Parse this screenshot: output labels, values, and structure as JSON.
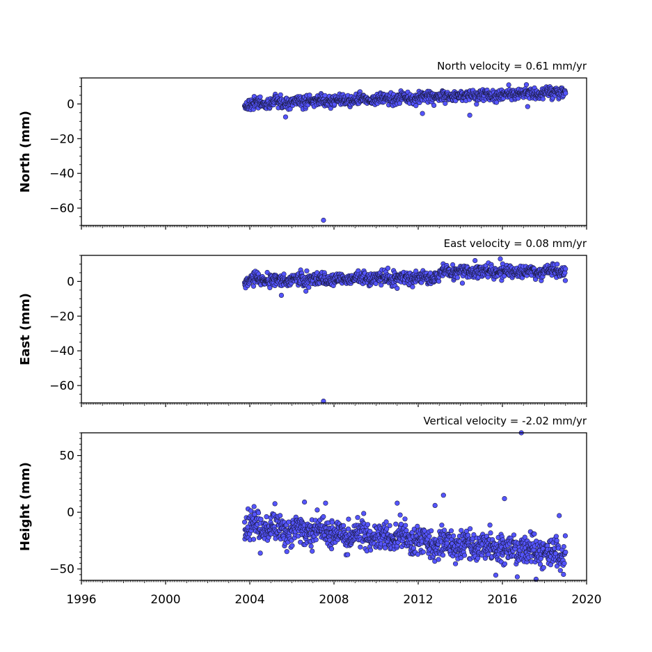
{
  "chart_data": [
    {
      "type": "scatter",
      "panel": "north",
      "ylabel": "North (mm)",
      "annotation": "North velocity = 0.61 mm/yr",
      "xlim": [
        1996,
        2020
      ],
      "ylim": [
        -70,
        15
      ],
      "yticks": [
        0,
        -20,
        -40,
        -60
      ],
      "xticks": [
        1996,
        2000,
        2004,
        2008,
        2012,
        2016,
        2020
      ],
      "show_x_tick_labels": false,
      "point_color": "#5555ff",
      "data_range": [
        2003.75,
        2019.0
      ],
      "trend": {
        "start": 0,
        "end": 7,
        "scatter": 1.6
      },
      "outliers": [
        {
          "x": 2005.7,
          "y": -7.5
        },
        {
          "x": 2007.5,
          "y": -67
        },
        {
          "x": 2012.2,
          "y": -5.5
        },
        {
          "x": 2014.45,
          "y": -6.5
        },
        {
          "x": 2016.3,
          "y": 11
        },
        {
          "x": 2017.2,
          "y": -1.5
        }
      ]
    },
    {
      "type": "scatter",
      "panel": "east",
      "ylabel": "East (mm)",
      "annotation": "East velocity = 0.08 mm/yr",
      "xlim": [
        1996,
        2020
      ],
      "ylim": [
        -70,
        15
      ],
      "yticks": [
        0,
        -20,
        -40,
        -60
      ],
      "xticks": [
        1996,
        2000,
        2004,
        2008,
        2012,
        2016,
        2020
      ],
      "show_x_tick_labels": false,
      "point_color": "#5555ff",
      "data_range": [
        2003.75,
        2019.0
      ],
      "trend": {
        "start": 0.5,
        "end": 6,
        "scatter": 1.8,
        "step_year": 2013.0,
        "step_before": 2.5,
        "step_after": 5.5
      },
      "outliers": [
        {
          "x": 2005.5,
          "y": -8
        },
        {
          "x": 2007.5,
          "y": -69
        },
        {
          "x": 2011.0,
          "y": -4
        },
        {
          "x": 2014.1,
          "y": -1
        },
        {
          "x": 2014.7,
          "y": 12
        },
        {
          "x": 2015.9,
          "y": 13
        }
      ]
    },
    {
      "type": "scatter",
      "panel": "height",
      "ylabel": "Height (mm)",
      "annotation": "Vertical velocity = -2.02 mm/yr",
      "xlim": [
        1996,
        2020
      ],
      "ylim": [
        -60,
        70
      ],
      "yticks": [
        50,
        0,
        -50
      ],
      "xticks": [
        1996,
        2000,
        2004,
        2008,
        2012,
        2016,
        2020
      ],
      "show_x_tick_labels": true,
      "point_color": "#5555ff",
      "data_range": [
        2003.75,
        2019.0
      ],
      "trend": {
        "start": -12,
        "end": -37,
        "scatter": 6.5
      },
      "outliers": [
        {
          "x": 2004.2,
          "y": 5
        },
        {
          "x": 2004.5,
          "y": -36
        },
        {
          "x": 2006.6,
          "y": 9
        },
        {
          "x": 2007.6,
          "y": 8
        },
        {
          "x": 2011.0,
          "y": 8
        },
        {
          "x": 2012.8,
          "y": 6
        },
        {
          "x": 2013.2,
          "y": 15
        },
        {
          "x": 2016.1,
          "y": 12
        },
        {
          "x": 2016.9,
          "y": 70
        },
        {
          "x": 2017.6,
          "y": -59
        },
        {
          "x": 2018.7,
          "y": -3
        }
      ]
    }
  ]
}
